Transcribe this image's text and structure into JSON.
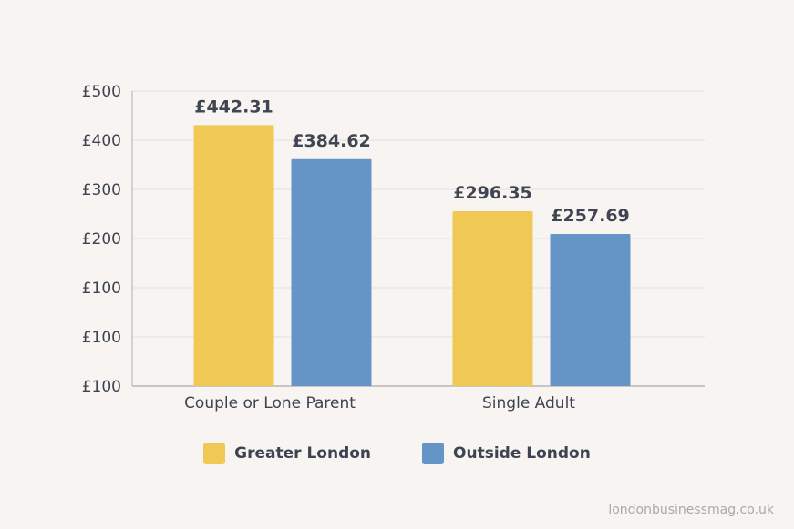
{
  "chart_data": {
    "type": "bar",
    "title": "",
    "xlabel": "",
    "ylabel": "",
    "categories": [
      "Couple or Lone Parent",
      "Single Adult"
    ],
    "series": [
      {
        "name": "Greater London",
        "values": [
          442.31,
          296.35
        ],
        "labels": [
          "£442.31",
          "£296.35"
        ],
        "color": "#f0c955"
      },
      {
        "name": "Outside London",
        "values": [
          384.62,
          257.69
        ],
        "labels": [
          "£384.62",
          "£257.69"
        ],
        "color": "#6594c6"
      }
    ],
    "y_tick_labels": [
      "£500",
      "£400",
      "£300",
      "£200",
      "£100",
      "£100",
      "£100"
    ],
    "ylim": [
      0,
      500
    ],
    "grid": true,
    "legend_position": "bottom"
  },
  "watermark": "londonbusinessmag.co.uk"
}
